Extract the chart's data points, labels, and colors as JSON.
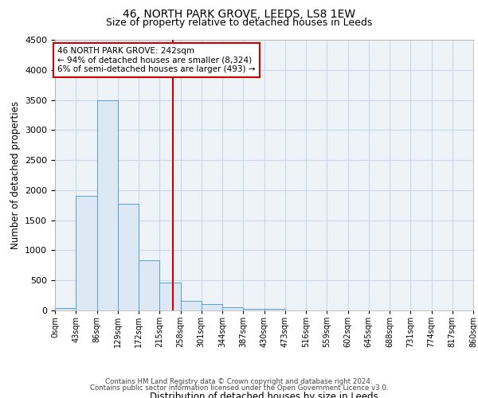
{
  "title1": "46, NORTH PARK GROVE, LEEDS, LS8 1EW",
  "title2": "Size of property relative to detached houses in Leeds",
  "xlabel": "Distribution of detached houses by size in Leeds",
  "ylabel": "Number of detached properties",
  "annotation_line1": "46 NORTH PARK GROVE: 242sqm",
  "annotation_line2": "← 94% of detached houses are smaller (8,324)",
  "annotation_line3": "6% of semi-detached houses are larger (493) →",
  "property_size": 242,
  "bin_edges": [
    0,
    43,
    86,
    129,
    172,
    215,
    258,
    301,
    344,
    387,
    430,
    473,
    516,
    559,
    602,
    645,
    688,
    731,
    774,
    817,
    860
  ],
  "bin_counts": [
    40,
    1900,
    3500,
    1780,
    840,
    460,
    160,
    100,
    55,
    30,
    30,
    0,
    0,
    0,
    0,
    0,
    0,
    0,
    0,
    0
  ],
  "bar_facecolor": "#dce9f5",
  "bar_edgecolor": "#5a9fd4",
  "vline_color": "#cc0000",
  "vline_x": 242,
  "annotation_box_edgecolor": "#cc0000",
  "annotation_box_facecolor": "#ffffff",
  "ylim": [
    0,
    4500
  ],
  "yticks": [
    0,
    500,
    1000,
    1500,
    2000,
    2500,
    3000,
    3500,
    4000,
    4500
  ],
  "grid_color": "#c8d8e8",
  "background_color": "#eef3f8",
  "footer1": "Contains HM Land Registry data © Crown copyright and database right 2024.",
  "footer2": "Contains public sector information licensed under the Open Government Licence v3.0."
}
